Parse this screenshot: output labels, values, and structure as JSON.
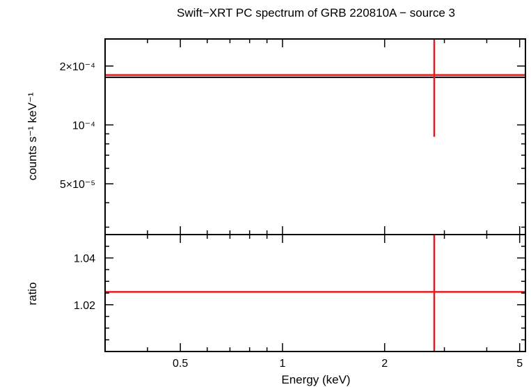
{
  "chart_data": {
    "type": "scatter",
    "title": "Swift−XRT PC spectrum of GRB 220810A − source 3",
    "xlabel": "Energy (keV)",
    "x_scale": "log",
    "xlim": [
      0.3,
      5.2
    ],
    "x_ticks": [
      {
        "value": 0.5,
        "label": "0.5"
      },
      {
        "value": 1,
        "label": "1"
      },
      {
        "value": 2,
        "label": "2"
      },
      {
        "value": 5,
        "label": "5"
      }
    ],
    "panels": [
      {
        "name": "spectrum",
        "ylabel": "counts s⁻¹ keV⁻¹",
        "y_scale": "log",
        "ylim": [
          2.75e-05,
          0.000275
        ],
        "y_ticks": [
          {
            "value": 5e-05,
            "label": "5×10⁻⁵"
          },
          {
            "value": 0.0001,
            "label": "10⁻⁴"
          },
          {
            "value": 0.0002,
            "label": "2×10⁻⁴"
          }
        ],
        "series": [
          {
            "kind": "model",
            "color": "#000000",
            "x": [
              0.3,
              5.2
            ],
            "y": [
              0.000175,
              0.000175
            ]
          },
          {
            "kind": "data",
            "color": "#e8191f",
            "points": [
              {
                "x": 2.8,
                "xerr": [
                  0.3,
                  5.2
                ],
                "y": 0.00018,
                "yerr": [
                  8.7e-05,
                  0.000275
                ]
              }
            ]
          }
        ]
      },
      {
        "name": "ratio",
        "ylabel": "ratio",
        "y_scale": "linear",
        "ylim": [
          1.0,
          1.05
        ],
        "y_ticks": [
          {
            "value": 1.02,
            "label": "1.02"
          },
          {
            "value": 1.04,
            "label": "1.04"
          }
        ],
        "series": [
          {
            "kind": "data",
            "color": "#e8191f",
            "points": [
              {
                "x": 2.8,
                "xerr": [
                  0.3,
                  5.2
                ],
                "y": 1.0255,
                "yerr": [
                  1.0,
                  1.05
                ]
              }
            ]
          }
        ]
      }
    ]
  }
}
